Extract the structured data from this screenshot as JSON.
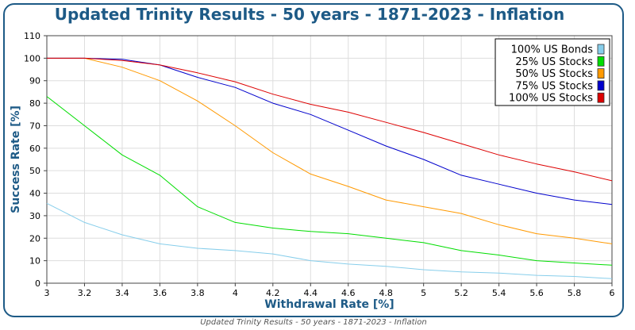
{
  "chart_data": {
    "type": "line",
    "title": "Updated Trinity Results - 50 years - 1871-2023 - Inflation",
    "caption": "Updated Trinity Results - 50 years - 1871-2023 - Inflation",
    "xlabel": "Withdrawal Rate [%]",
    "ylabel": "Success Rate [%]",
    "xlim": [
      3,
      6
    ],
    "ylim": [
      0,
      110
    ],
    "xticks": [
      3,
      3.2,
      3.4,
      3.6,
      3.8,
      4,
      4.2,
      4.4,
      4.6,
      4.8,
      5,
      5.2,
      5.4,
      5.6,
      5.8,
      6
    ],
    "xtick_labels": [
      "3",
      "3.2",
      "3.4",
      "3.6",
      "3.8",
      "4",
      "4.2",
      "4.4",
      "4.6",
      "4.8",
      "5",
      "5.2",
      "5.4",
      "5.6",
      "5.8",
      "6"
    ],
    "yticks": [
      0,
      10,
      20,
      30,
      40,
      50,
      60,
      70,
      80,
      90,
      100,
      110
    ],
    "ytick_labels": [
      "0",
      "10",
      "20",
      "30",
      "40",
      "50",
      "60",
      "70",
      "80",
      "90",
      "100",
      "110"
    ],
    "grid": true,
    "legend_position": "top-right",
    "x": [
      3,
      3.2,
      3.4,
      3.6,
      3.8,
      4,
      4.2,
      4.4,
      4.6,
      4.8,
      5,
      5.2,
      5.4,
      5.6,
      5.8,
      6
    ],
    "series": [
      {
        "name": "100% US Bonds",
        "color": "#87ceeb",
        "values": [
          35.5,
          27,
          21.5,
          17.5,
          15.5,
          14.5,
          13,
          10,
          8.5,
          7.5,
          6,
          5,
          4.5,
          3.5,
          3,
          2
        ]
      },
      {
        "name": "25% US Stocks",
        "color": "#00dd00",
        "values": [
          83,
          70,
          57,
          48,
          34,
          27,
          24.5,
          23,
          22,
          20,
          18,
          14.5,
          12.5,
          10,
          9,
          8
        ]
      },
      {
        "name": "50% US Stocks",
        "color": "#ff9900",
        "values": [
          100,
          100,
          96,
          90,
          81,
          70,
          58,
          48.5,
          43,
          37,
          34,
          31,
          26,
          22,
          20,
          17.5
        ]
      },
      {
        "name": "75% US Stocks",
        "color": "#0000cc",
        "values": [
          100,
          100,
          99.5,
          97,
          91.5,
          87,
          80,
          75,
          68,
          61,
          55,
          48,
          44,
          40,
          37,
          35
        ]
      },
      {
        "name": "100% US Stocks",
        "color": "#dd0000",
        "values": [
          100,
          100,
          99,
          97,
          93.5,
          89.5,
          84,
          79.5,
          76,
          71.5,
          67,
          62,
          57,
          53,
          49.5,
          45.5
        ]
      }
    ]
  }
}
